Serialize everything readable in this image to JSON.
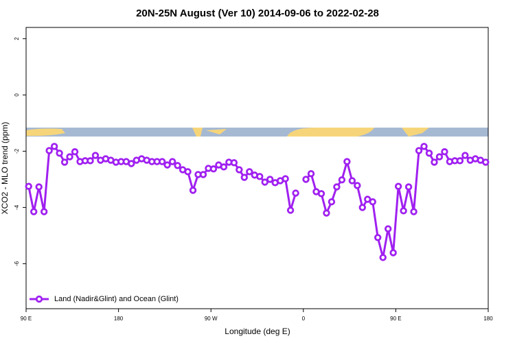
{
  "chart_data": {
    "type": "line",
    "title": "20N-25N August (Ver 10)   2014-09-06 to 2022-02-28",
    "xlabel": "Longitude (deg E)",
    "ylabel": "XCO2 - MLO trend (ppm)",
    "xlim": [
      90,
      540
    ],
    "ylim": [
      -7.6,
      2.4
    ],
    "xticks": [
      {
        "value": 90,
        "label": "90 E"
      },
      180,
      {
        "value": 270,
        "label": "90 W"
      },
      {
        "value": 360,
        "label": "0"
      },
      {
        "value": 450,
        "label": "90 E"
      },
      {
        "value": 540,
        "label": "180"
      }
    ],
    "yticks": [
      -6,
      -4,
      -2,
      0,
      2
    ],
    "legend": "bottom-left",
    "x": [
      92.5,
      97.5,
      102.5,
      107.5,
      112.5,
      117.5,
      122.5,
      127.5,
      132.5,
      137.5,
      142.5,
      147.5,
      152.5,
      157.5,
      162.5,
      167.5,
      172.5,
      177.5,
      182.5,
      187.5,
      192.5,
      197.5,
      202.5,
      207.5,
      212.5,
      217.5,
      222.5,
      227.5,
      232.5,
      237.5,
      242.5,
      247.5,
      252.5,
      257.5,
      262.5,
      267.5,
      272.5,
      277.5,
      282.5,
      287.5,
      292.5,
      297.5,
      302.5,
      307.5,
      312.5,
      317.5,
      322.5,
      327.5,
      332.5,
      337.5,
      342.5,
      347.5,
      352.5,
      357.5,
      362.5,
      367.5,
      372.5,
      377.5,
      382.5,
      387.5,
      392.5,
      397.5,
      402.5,
      407.5,
      412.5,
      417.5,
      422.5,
      427.5,
      432.5,
      437.5,
      442.5,
      447.5,
      452.5,
      457.5,
      462.5,
      467.5,
      472.5,
      477.5,
      482.5,
      487.5,
      492.5,
      497.5,
      502.5,
      507.5,
      512.5,
      517.5,
      522.5,
      527.5,
      532.5,
      537.5
    ],
    "series": [
      {
        "name": "Land (Nadir&Glint) and Ocean (Glint)",
        "color": "#a020f0",
        "values": [
          -3.25,
          -4.15,
          -3.27,
          -4.15,
          -1.98,
          -1.83,
          -2.07,
          -2.39,
          -2.2,
          -2.02,
          -2.37,
          -2.34,
          -2.34,
          -2.15,
          -2.32,
          -2.27,
          -2.32,
          -2.39,
          -2.37,
          -2.37,
          -2.44,
          -2.32,
          -2.27,
          -2.32,
          -2.37,
          -2.37,
          -2.37,
          -2.49,
          -2.37,
          -2.51,
          -2.66,
          -2.73,
          -3.39,
          -2.83,
          -2.83,
          -2.61,
          -2.63,
          -2.49,
          -2.56,
          -2.39,
          -2.41,
          -2.66,
          -2.93,
          -2.73,
          -2.85,
          -2.9,
          -3.1,
          -3.0,
          -3.12,
          -3.05,
          -2.98,
          -4.1,
          -3.49,
          null,
          -3.0,
          -2.8,
          -3.44,
          -3.51,
          -4.2,
          -3.8,
          -3.27,
          -3.02,
          -2.37,
          -3.05,
          -3.22,
          -4.0,
          -3.71,
          -3.8,
          -5.07,
          -5.78,
          -4.76,
          -5.61,
          -3.25,
          -4.12,
          -3.27,
          -4.15,
          -1.98,
          -1.83,
          -2.07,
          -2.39,
          -2.2,
          -2.02,
          -2.37,
          -2.34,
          -2.34,
          -2.15,
          -2.32,
          -2.27,
          -2.32,
          -2.39
        ]
      }
    ]
  }
}
